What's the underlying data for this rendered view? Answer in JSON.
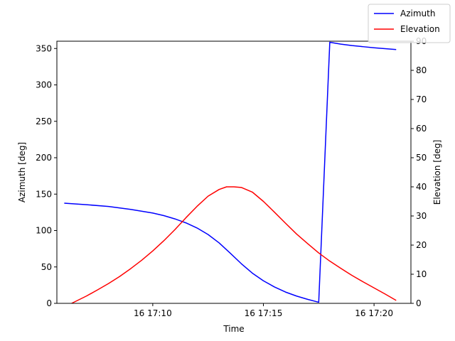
{
  "chart_data": {
    "type": "line",
    "xlabel": "Time",
    "ylabel_left": "Azimuth [deg]",
    "ylabel_right": "Elevation [deg]",
    "xlim": [
      "16 17:05:40",
      "16 17:21:40"
    ],
    "ylim_left": [
      0,
      360
    ],
    "ylim_right": [
      0,
      90
    ],
    "x_ticks": [
      {
        "t": "16 17:10:00",
        "label": "16 17:10"
      },
      {
        "t": "16 17:15:00",
        "label": "16 17:15"
      },
      {
        "t": "16 17:20:00",
        "label": "16 17:20"
      }
    ],
    "y_ticks_left": [
      0,
      50,
      100,
      150,
      200,
      250,
      300,
      350
    ],
    "y_ticks_right": [
      0,
      10,
      20,
      30,
      40,
      50,
      60,
      70,
      80,
      90
    ],
    "grid": false,
    "legend_position": "top-right",
    "series": [
      {
        "name": "Azimuth",
        "axis": "left",
        "color": "#0000ff",
        "points": [
          [
            "16 17:06:00",
            137.5
          ],
          [
            "16 17:07:00",
            135.5
          ],
          [
            "16 17:08:00",
            133.0
          ],
          [
            "16 17:09:00",
            129.0
          ],
          [
            "16 17:10:00",
            124.0
          ],
          [
            "16 17:10:30",
            120.5
          ],
          [
            "16 17:11:00",
            116.0
          ],
          [
            "16 17:11:30",
            110.5
          ],
          [
            "16 17:12:00",
            103.5
          ],
          [
            "16 17:12:30",
            94.5
          ],
          [
            "16 17:13:00",
            83.0
          ],
          [
            "16 17:13:30",
            69.0
          ],
          [
            "16 17:14:00",
            54.5
          ],
          [
            "16 17:14:30",
            41.5
          ],
          [
            "16 17:15:00",
            31.0
          ],
          [
            "16 17:15:30",
            22.5
          ],
          [
            "16 17:16:00",
            15.5
          ],
          [
            "16 17:16:30",
            10.0
          ],
          [
            "16 17:17:00",
            5.5
          ],
          [
            "16 17:17:30",
            1.5
          ],
          [
            "16 17:18:00",
            358.5
          ],
          [
            "16 17:18:30",
            356.0
          ],
          [
            "16 17:19:00",
            354.0
          ],
          [
            "16 17:19:30",
            352.5
          ],
          [
            "16 17:20:00",
            351.0
          ],
          [
            "16 17:20:30",
            349.8
          ],
          [
            "16 17:21:00",
            348.5
          ]
        ]
      },
      {
        "name": "Elevation",
        "axis": "right",
        "color": "#ff0000",
        "points": [
          [
            "16 17:06:20",
            0.0
          ],
          [
            "16 17:07:00",
            2.5
          ],
          [
            "16 17:07:30",
            4.6
          ],
          [
            "16 17:08:00",
            6.8
          ],
          [
            "16 17:08:30",
            9.2
          ],
          [
            "16 17:09:00",
            11.9
          ],
          [
            "16 17:09:30",
            14.8
          ],
          [
            "16 17:10:00",
            18.0
          ],
          [
            "16 17:10:30",
            21.5
          ],
          [
            "16 17:11:00",
            25.3
          ],
          [
            "16 17:11:30",
            29.4
          ],
          [
            "16 17:12:00",
            33.3
          ],
          [
            "16 17:12:30",
            36.8
          ],
          [
            "16 17:13:00",
            39.1
          ],
          [
            "16 17:13:20",
            40.0
          ],
          [
            "16 17:13:40",
            40.0
          ],
          [
            "16 17:14:00",
            39.8
          ],
          [
            "16 17:14:30",
            38.2
          ],
          [
            "16 17:15:00",
            35.0
          ],
          [
            "16 17:15:30",
            31.3
          ],
          [
            "16 17:16:00",
            27.5
          ],
          [
            "16 17:16:30",
            23.8
          ],
          [
            "16 17:17:00",
            20.5
          ],
          [
            "16 17:17:30",
            17.3
          ],
          [
            "16 17:18:00",
            14.5
          ],
          [
            "16 17:18:30",
            12.0
          ],
          [
            "16 17:19:00",
            9.6
          ],
          [
            "16 17:19:30",
            7.4
          ],
          [
            "16 17:20:00",
            5.3
          ],
          [
            "16 17:20:30",
            3.2
          ],
          [
            "16 17:21:00",
            1.0
          ]
        ]
      }
    ]
  }
}
